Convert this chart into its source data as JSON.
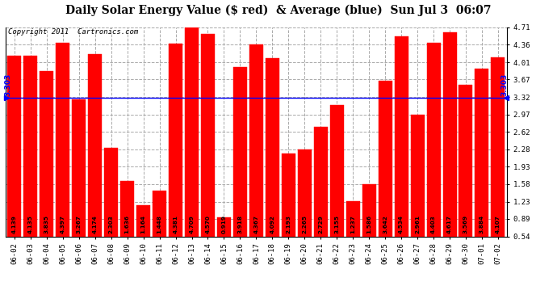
{
  "title": "Daily Solar Energy Value ($ red)  & Average (blue)  Sun Jul 3  06:07",
  "copyright": "Copyright 2011  Cartronics.com",
  "average": 3.303,
  "categories": [
    "06-02",
    "06-03",
    "06-04",
    "06-05",
    "06-06",
    "06-07",
    "06-08",
    "06-09",
    "06-10",
    "06-11",
    "06-12",
    "06-13",
    "06-14",
    "06-15",
    "06-16",
    "06-17",
    "06-18",
    "06-19",
    "06-20",
    "06-21",
    "06-22",
    "06-23",
    "06-24",
    "06-25",
    "06-26",
    "06-27",
    "06-28",
    "06-29",
    "06-30",
    "07-01",
    "07-02"
  ],
  "values": [
    4.139,
    4.135,
    3.835,
    4.397,
    3.267,
    4.174,
    2.303,
    1.636,
    1.164,
    1.448,
    4.381,
    4.709,
    4.57,
    0.919,
    3.918,
    4.367,
    4.092,
    2.193,
    2.265,
    2.729,
    3.155,
    1.237,
    1.586,
    3.642,
    4.534,
    2.961,
    4.403,
    4.617,
    3.569,
    3.884,
    4.107
  ],
  "bar_color": "#ff0000",
  "avg_line_color": "#0000ff",
  "background_color": "#ffffff",
  "plot_bg_color": "#ffffff",
  "grid_color": "#aaaaaa",
  "ymin": 0.54,
  "ymax": 4.71,
  "yticks": [
    0.54,
    0.89,
    1.23,
    1.58,
    1.93,
    2.28,
    2.62,
    2.97,
    3.32,
    3.67,
    4.01,
    4.36,
    4.71
  ],
  "title_fontsize": 10,
  "copyright_fontsize": 6.5,
  "tick_fontsize": 6.5,
  "bar_label_fontsize": 5.2
}
